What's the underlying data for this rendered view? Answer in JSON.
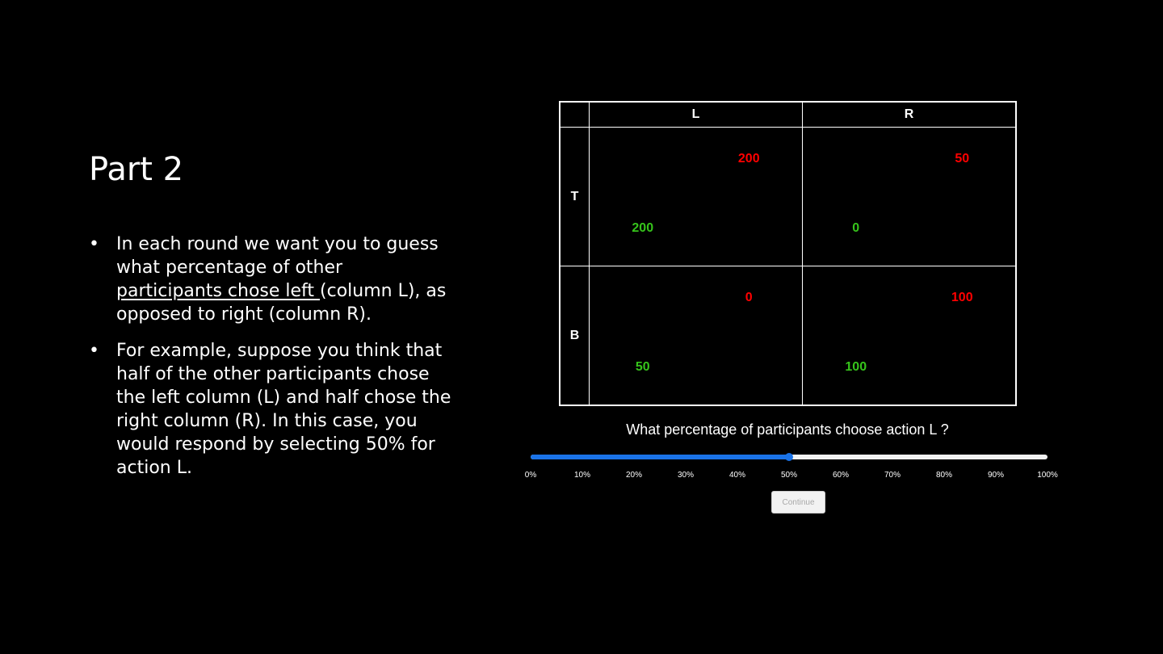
{
  "slide": {
    "title": "Part 2",
    "bullets": [
      {
        "pre": "In each round we want you to guess what percentage of other ",
        "underlined": "participants chose left ",
        "post": "(column L), as opposed to right (column R)."
      },
      {
        "text": "For example, suppose you think that half of the other participants chose the left column (L) and half chose the right column (R).  In this case, you would respond by selecting 50% for action L."
      }
    ]
  },
  "matrix": {
    "columns": [
      "L",
      "R"
    ],
    "rows": [
      {
        "label": "T",
        "cells": [
          {
            "row_payoff": "200",
            "col_payoff": "200"
          },
          {
            "row_payoff": "50",
            "col_payoff": "0"
          }
        ]
      },
      {
        "label": "B",
        "cells": [
          {
            "row_payoff": "0",
            "col_payoff": "50"
          },
          {
            "row_payoff": "100",
            "col_payoff": "100"
          }
        ]
      }
    ],
    "colors": {
      "row_payoff": "#ff0000",
      "col_payoff": "#36c41b"
    }
  },
  "question": "What percentage of participants choose action L ?",
  "slider": {
    "value_percent": 50,
    "min": 0,
    "max": 100,
    "tick_labels": [
      "0%",
      "10%",
      "20%",
      "30%",
      "40%",
      "50%",
      "60%",
      "70%",
      "80%",
      "90%",
      "100%"
    ],
    "accent_color": "#1a73e8"
  },
  "continue_label": "Continue"
}
